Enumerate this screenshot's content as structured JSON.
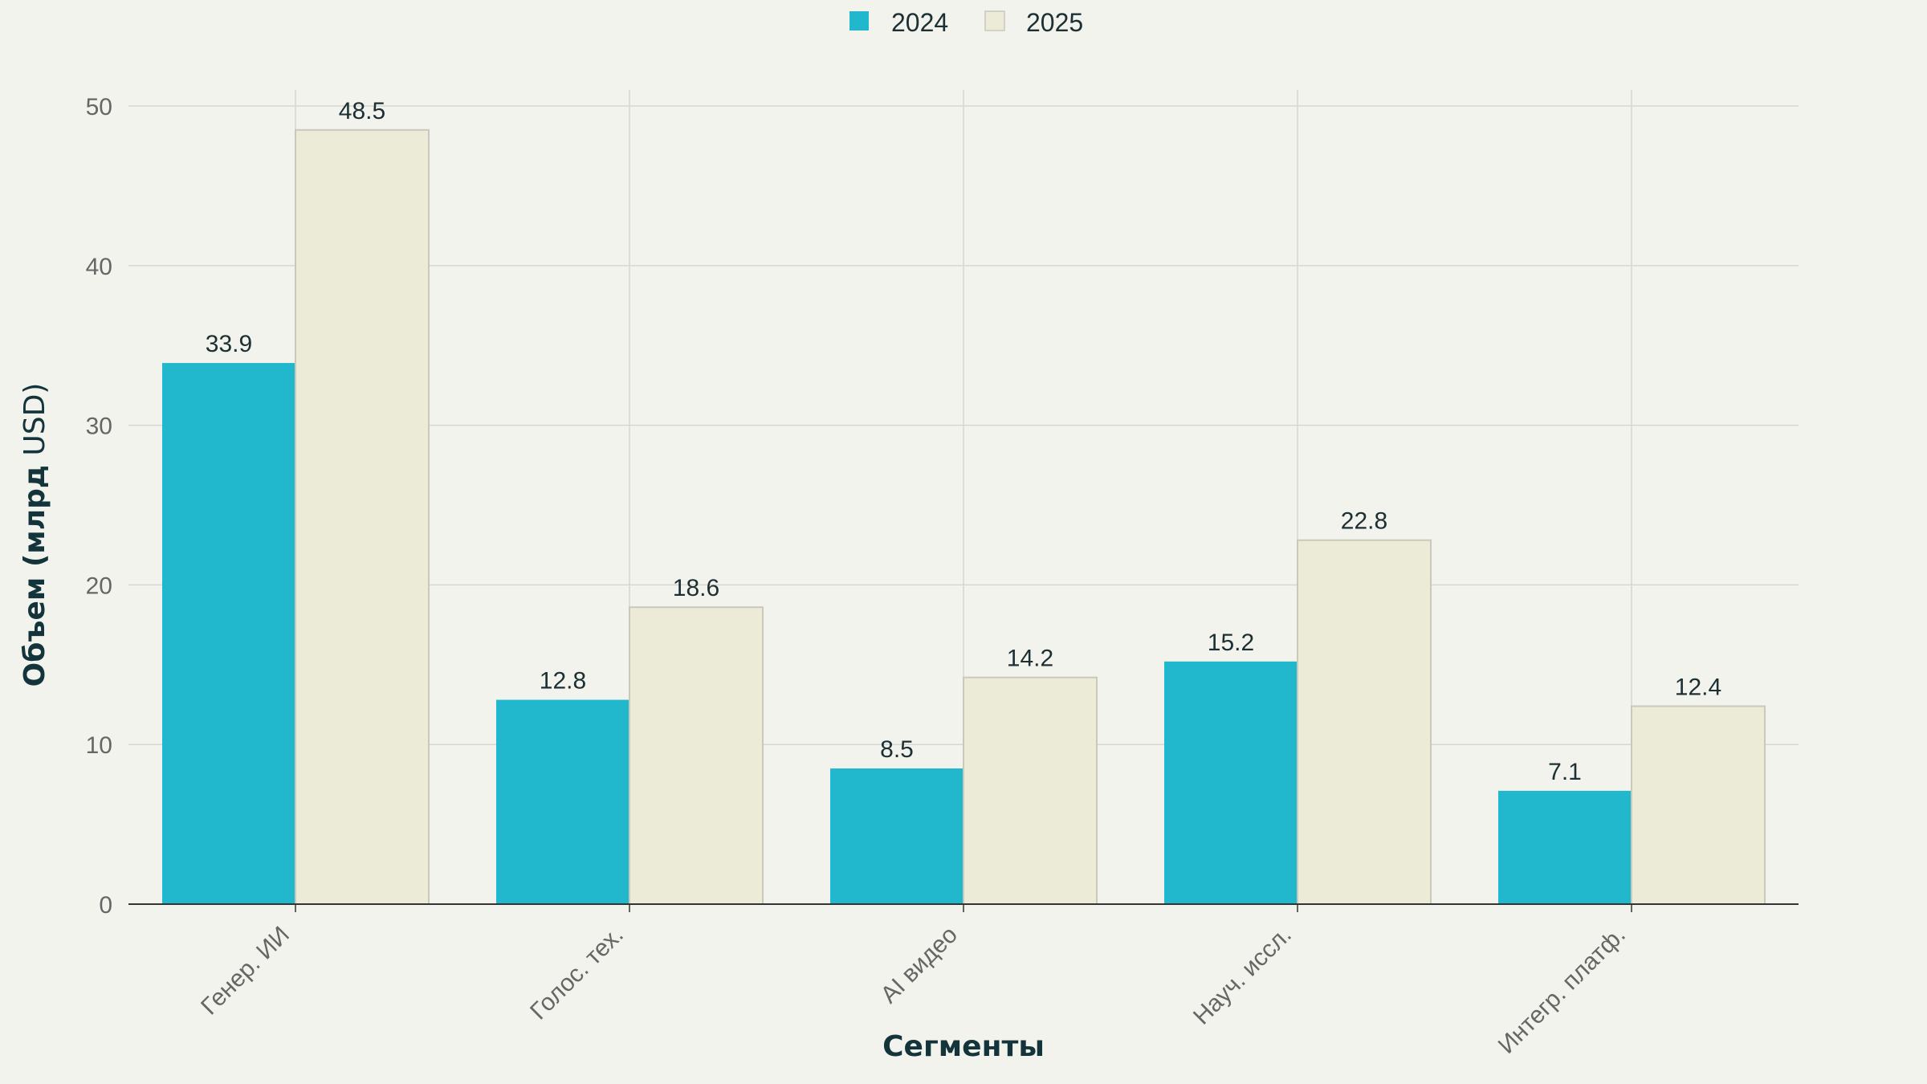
{
  "chart_data": {
    "type": "bar",
    "categories": [
      "Генер. ИИ",
      "Голос. тех.",
      "AI видео",
      "Науч. иссл.",
      "Интегр. платф."
    ],
    "series": [
      {
        "name": "2024",
        "values": [
          33.9,
          12.8,
          8.5,
          15.2,
          7.1
        ],
        "color": "#21b8cd"
      },
      {
        "name": "2025",
        "values": [
          48.5,
          18.6,
          14.2,
          22.8,
          12.4
        ],
        "color": "#ecebd8"
      }
    ],
    "xlabel": "Сегменты",
    "ylabel_bold": "Объем (млрд",
    "ylabel_rest": " USD)",
    "ylim": [
      0,
      50
    ],
    "yticks": [
      0,
      10,
      20,
      30,
      40,
      50
    ],
    "legend_position": "top-center",
    "grid": true,
    "colors": {
      "background": "#f3f3ee",
      "grid": "#d7d7d2",
      "axis": "#333333",
      "bar_border_2025": "#c9c8bb"
    }
  }
}
